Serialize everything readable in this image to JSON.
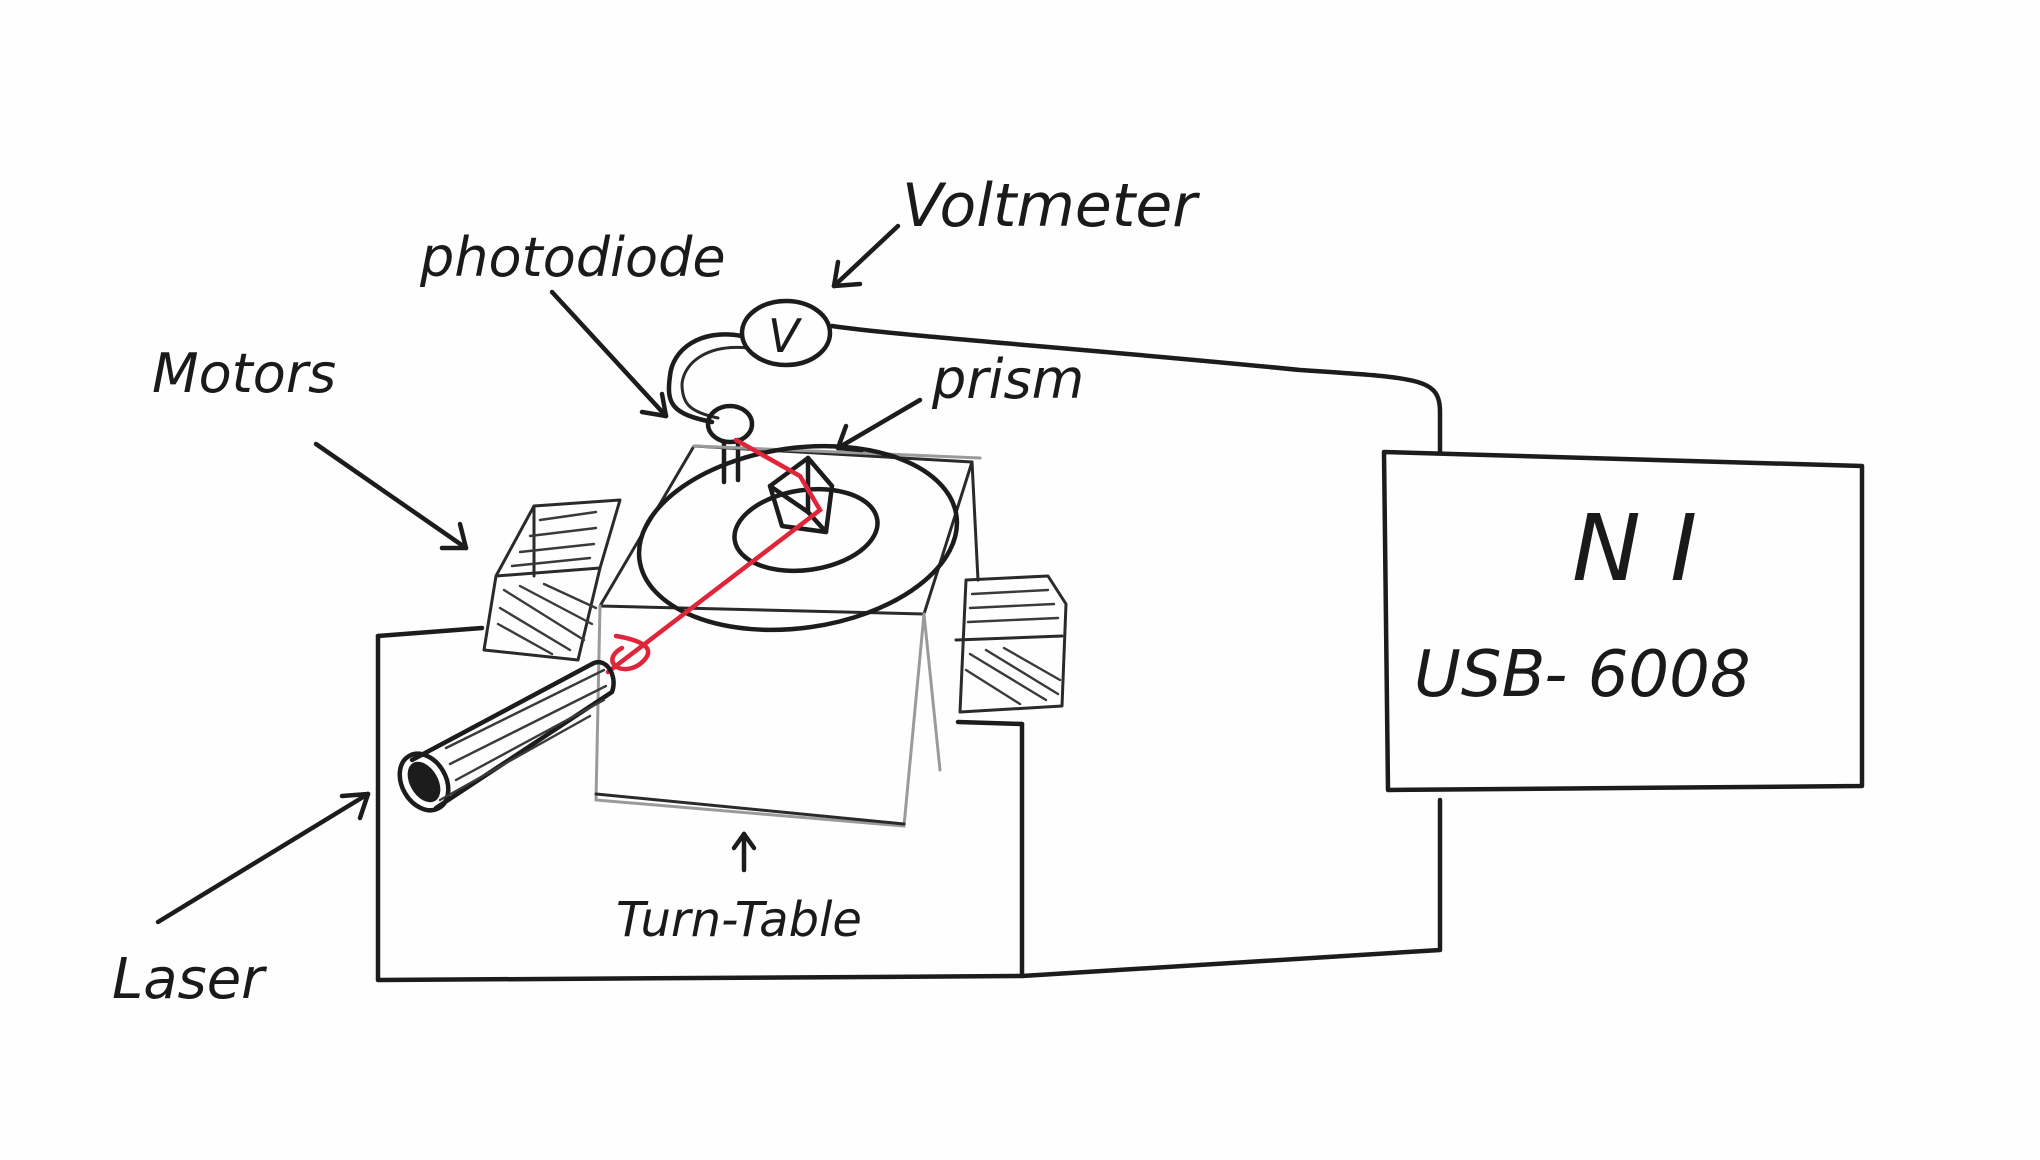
{
  "labels": {
    "voltmeter": "Voltmeter",
    "photodiode": "photodiode",
    "motors": "Motors",
    "prism": "prism",
    "laser": "Laser",
    "turntable": "Turn-Table",
    "voltmeter_symbol": "V",
    "device_brand": "N I",
    "device_model": "USB- 6008"
  },
  "colors": {
    "ink": "#1c1c1c",
    "laser_beam": "#e0243a",
    "background": "#fefefe"
  }
}
